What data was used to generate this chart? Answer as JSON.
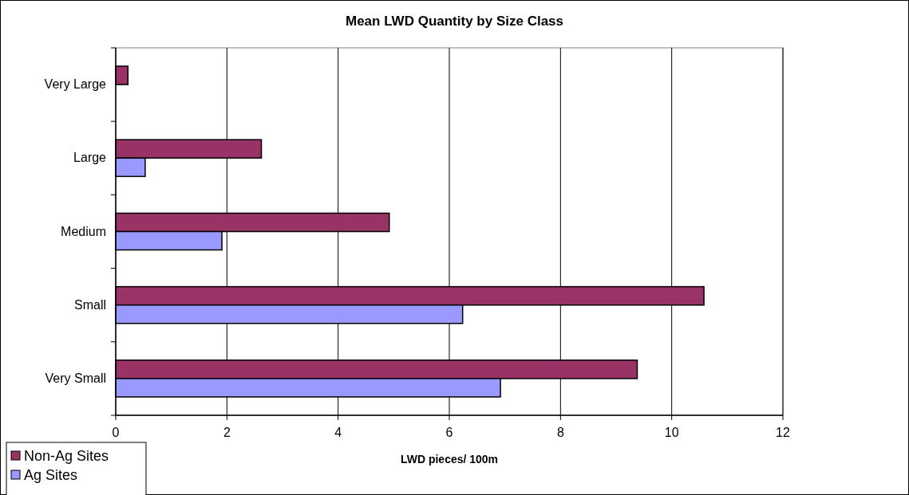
{
  "chart_data": {
    "type": "bar",
    "orientation": "horizontal",
    "title": "Mean LWD Quantity by Size Class",
    "xlabel": "LWD pieces/ 100m",
    "categories": [
      "Very Large",
      "Large",
      "Medium",
      "Small",
      "Very Small"
    ],
    "series": [
      {
        "name": "Non-Ag Sites",
        "color": "#993366",
        "values": [
          0.22,
          2.62,
          4.92,
          10.58,
          9.38
        ]
      },
      {
        "name": "Ag Sites",
        "color": "#9999ff",
        "values": [
          null,
          0.53,
          1.91,
          6.24,
          6.92
        ]
      }
    ],
    "xlim": [
      0,
      12
    ],
    "xticks": [
      0,
      2,
      4,
      6,
      8,
      10,
      12
    ],
    "grid": "x",
    "legend": "bottom left"
  }
}
